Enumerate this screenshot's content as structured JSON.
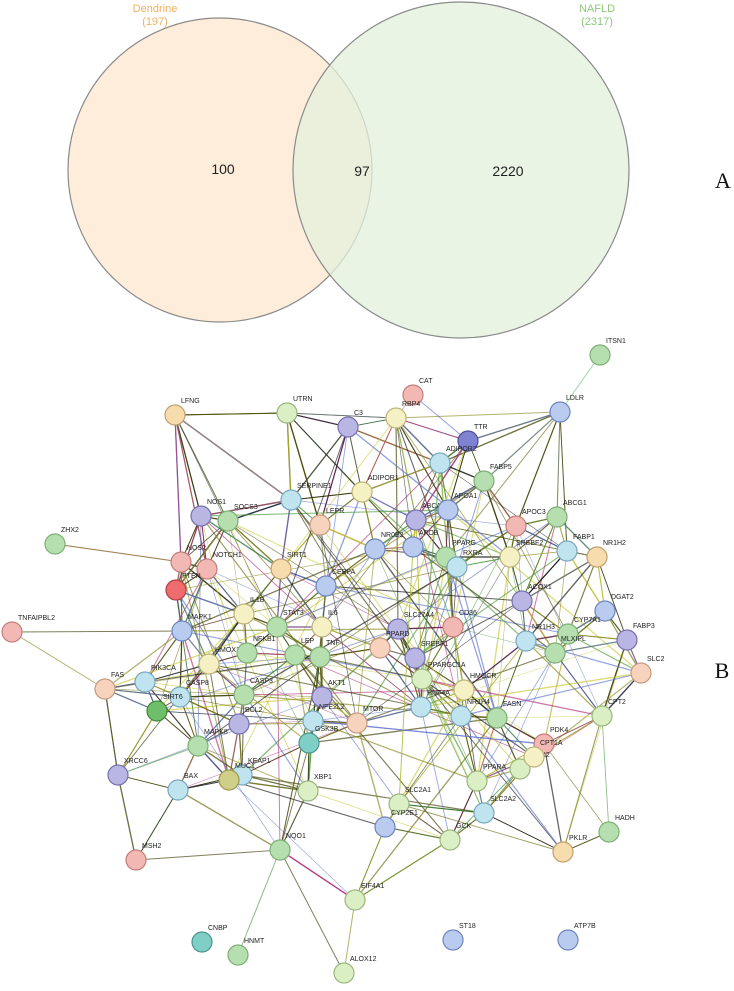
{
  "venn": {
    "sets": [
      {
        "name": "Dendrine",
        "count": "(197)"
      },
      {
        "name": "NAFLD",
        "count": "(2317)"
      }
    ],
    "regions": [
      "100",
      "97",
      "2220"
    ]
  },
  "panels": [
    "A",
    "B"
  ],
  "network": {
    "nodes": [
      "ITSN1",
      "CAT",
      "LDLR",
      "LFNG",
      "UTRN",
      "C3",
      "RBP4",
      "TTR",
      "ADIPOR2",
      "FABP5",
      "ADIPOR1",
      "SERPINE1",
      "NOS1",
      "SOCS3",
      "LEPR",
      "ABCA1",
      "APOA1",
      "APOC3",
      "ABCG1",
      "ZHX2",
      "FABP1",
      "NR1H2",
      "NOS2",
      "NOTCH1",
      "SIRT1",
      "NR0B2",
      "APOB",
      "PPARG",
      "RXRA",
      "SREBF2",
      "CEBPA",
      "ACOX1",
      "DGAT2",
      "PTEN",
      "MAPK1",
      "IL1B",
      "STAT3",
      "IL6",
      "SLC27A4",
      "CD36",
      "CYP7A1",
      "FABP3",
      "TNFAIPBL2",
      "HMOX1",
      "NFKB1",
      "LEP",
      "TNF",
      "PPARD",
      "SREBF1",
      "NR1H3",
      "MLXIPL",
      "SLC2",
      "FAS",
      "PIK3CA",
      "CASP3",
      "AKT1",
      "PPARGC1A",
      "HMGCR",
      "NR1H4",
      "FASN",
      "HNF4A",
      "CPT2",
      "CASP8",
      "BCL2",
      "MAPK8",
      "SIRT6",
      "NFE2L2",
      "MTOR",
      "GSK3B",
      "KEAP1",
      "PDK4",
      "ACOX2",
      "CPT1A",
      "MUC1",
      "BAX",
      "XRCC6",
      "XBP1",
      "PPARA",
      "SLC2A1",
      "SLC2A2",
      "HADH",
      "CYP2E1",
      "GCK",
      "PKLR",
      "NQO1",
      "MSH2",
      "EIF4A1",
      "CNBP",
      "HNMT",
      "ST18",
      "ATP7B",
      "ALOX12"
    ]
  }
}
